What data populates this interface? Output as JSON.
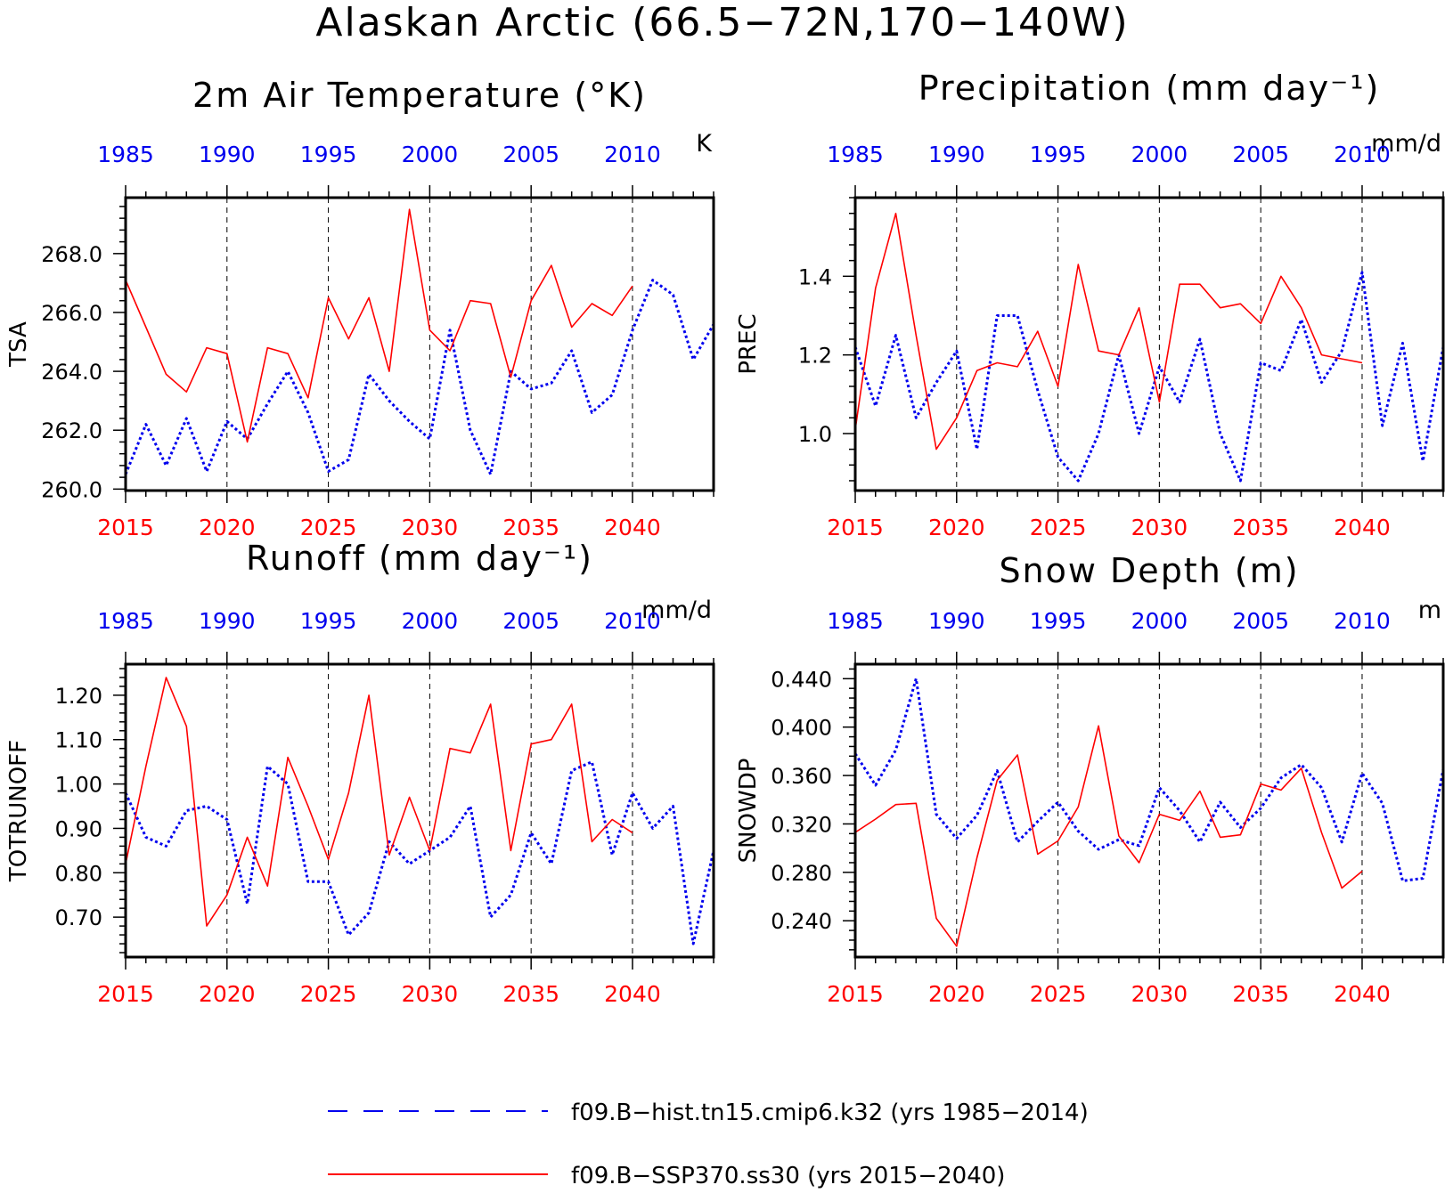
{
  "figure": {
    "title": "Alaskan Arctic (66.5−72N,170−140W)"
  },
  "colors": {
    "hist": "#0000ee",
    "ssp": "#ff0000",
    "axis": "#000000",
    "grid": "#000000"
  },
  "legend": {
    "hist_label": "f09.B−hist.tn15.cmip6.k32 (yrs 1985−2014)",
    "ssp_label": "f09.B−SSP370.ss30 (yrs 2015−2040)"
  },
  "chart_data": [
    {
      "type": "line",
      "title": "2m Air Temperature (°K)",
      "ylabel": "TSA",
      "units": "K",
      "xlim_bottom": [
        2015,
        2044
      ],
      "xlim_top": [
        1985,
        2014
      ],
      "ylim": [
        259.95,
        269.9
      ],
      "major_ticks": [
        260.0,
        262.0,
        264.0,
        266.0,
        268.0
      ],
      "tick_labels": [
        "260.0",
        "262.0",
        "264.0",
        "266.0",
        "268.0"
      ],
      "minor_step": 0.4,
      "bottom_ticks": [
        "2015",
        "2020",
        "2025",
        "2030",
        "2035",
        "2040"
      ],
      "top_ticks": [
        "1985",
        "1990",
        "1995",
        "2000",
        "2005",
        "2010"
      ],
      "grid": "dashed vertical lines every 5 years",
      "series": [
        {
          "name": "f09.B−hist.tn15.cmip6.k32 (yrs 1985−2014)",
          "style": "dotted",
          "x": [
            1985,
            1986,
            1987,
            1988,
            1989,
            1990,
            1991,
            1992,
            1993,
            1994,
            1995,
            1996,
            1997,
            1998,
            1999,
            2000,
            2001,
            2002,
            2003,
            2004,
            2005,
            2006,
            2007,
            2008,
            2009,
            2010,
            2011,
            2012,
            2013,
            2014
          ],
          "values": [
            260.5,
            262.2,
            260.8,
            262.4,
            260.6,
            262.3,
            261.7,
            262.9,
            264.0,
            262.6,
            260.6,
            261.0,
            263.9,
            263.0,
            262.3,
            261.7,
            265.4,
            262.0,
            260.5,
            264.0,
            263.4,
            263.6,
            264.7,
            262.6,
            263.2,
            265.4,
            267.1,
            266.6,
            264.4,
            265.6
          ]
        },
        {
          "name": "f09.B−SSP370.ss30 (yrs 2015−2040)",
          "style": "solid",
          "x": [
            2015,
            2016,
            2017,
            2018,
            2019,
            2020,
            2021,
            2022,
            2023,
            2024,
            2025,
            2026,
            2027,
            2028,
            2029,
            2030,
            2031,
            2032,
            2033,
            2034,
            2035,
            2036,
            2037,
            2038,
            2039,
            2040
          ],
          "values": [
            267.1,
            265.5,
            263.9,
            263.3,
            264.8,
            264.6,
            261.6,
            264.8,
            264.6,
            263.1,
            266.5,
            265.1,
            266.5,
            264.0,
            269.5,
            265.4,
            264.7,
            266.4,
            266.3,
            263.8,
            266.4,
            267.6,
            265.5,
            266.3,
            265.9,
            266.9
          ]
        }
      ]
    },
    {
      "type": "line",
      "title": "Precipitation (mm day⁻¹)",
      "ylabel": "PREC",
      "units": "mm/d",
      "xlim_bottom": [
        2015,
        2044
      ],
      "xlim_top": [
        1985,
        2014
      ],
      "ylim": [
        0.855,
        1.6
      ],
      "major_ticks": [
        1.0,
        1.2,
        1.4
      ],
      "tick_labels": [
        "1.0",
        "1.2",
        "1.4"
      ],
      "minor_step": 0.04,
      "bottom_ticks": [
        "2015",
        "2020",
        "2025",
        "2030",
        "2035",
        "2040"
      ],
      "top_ticks": [
        "1985",
        "1990",
        "1995",
        "2000",
        "2005",
        "2010"
      ],
      "grid": "dashed vertical lines every 5 years",
      "series": [
        {
          "name": "f09.B−hist.tn15.cmip6.k32 (yrs 1985−2014)",
          "style": "dotted",
          "x": [
            1985,
            1986,
            1987,
            1988,
            1989,
            1990,
            1991,
            1992,
            1993,
            1994,
            1995,
            1996,
            1997,
            1998,
            1999,
            2000,
            2001,
            2002,
            2003,
            2004,
            2005,
            2006,
            2007,
            2008,
            2009,
            2010,
            2011,
            2012,
            2013,
            2014
          ],
          "values": [
            1.22,
            1.07,
            1.25,
            1.04,
            1.13,
            1.21,
            0.96,
            1.3,
            1.3,
            1.11,
            0.94,
            0.88,
            1.0,
            1.2,
            1.0,
            1.17,
            1.08,
            1.24,
            1.0,
            0.88,
            1.18,
            1.16,
            1.29,
            1.13,
            1.21,
            1.41,
            1.02,
            1.23,
            0.93,
            1.22
          ]
        },
        {
          "name": "f09.B−SSP370.ss30 (yrs 2015−2040)",
          "style": "solid",
          "x": [
            2015,
            2016,
            2017,
            2018,
            2019,
            2020,
            2021,
            2022,
            2023,
            2024,
            2025,
            2026,
            2027,
            2028,
            2029,
            2030,
            2031,
            2032,
            2033,
            2034,
            2035,
            2036,
            2037,
            2038,
            2039,
            2040
          ],
          "values": [
            1.01,
            1.37,
            1.56,
            1.25,
            0.96,
            1.04,
            1.16,
            1.18,
            1.17,
            1.26,
            1.12,
            1.43,
            1.21,
            1.2,
            1.32,
            1.08,
            1.38,
            1.38,
            1.32,
            1.33,
            1.28,
            1.4,
            1.32,
            1.2,
            1.19,
            1.18
          ]
        }
      ]
    },
    {
      "type": "line",
      "title": "Runoff (mm day⁻¹)",
      "ylabel": "TOTRUNOFF",
      "units": "mm/d",
      "xlim_bottom": [
        2015,
        2044
      ],
      "xlim_top": [
        1985,
        2014
      ],
      "ylim": [
        0.61,
        1.27
      ],
      "major_ticks": [
        0.7,
        0.8,
        0.9,
        1.0,
        1.1,
        1.2
      ],
      "tick_labels": [
        "0.70",
        "0.80",
        "0.90",
        "1.00",
        "1.10",
        "1.20"
      ],
      "minor_step": 0.02,
      "bottom_ticks": [
        "2015",
        "2020",
        "2025",
        "2030",
        "2035",
        "2040"
      ],
      "top_ticks": [
        "1985",
        "1990",
        "1995",
        "2000",
        "2005",
        "2010"
      ],
      "grid": "dashed vertical lines every 5 years",
      "series": [
        {
          "name": "f09.B−hist.tn15.cmip6.k32 (yrs 1985−2014)",
          "style": "dotted",
          "x": [
            1985,
            1986,
            1987,
            1988,
            1989,
            1990,
            1991,
            1992,
            1993,
            1994,
            1995,
            1996,
            1997,
            1998,
            1999,
            2000,
            2001,
            2002,
            2003,
            2004,
            2005,
            2006,
            2007,
            2008,
            2009,
            2010,
            2011,
            2012,
            2013,
            2014
          ],
          "values": [
            0.98,
            0.88,
            0.86,
            0.94,
            0.95,
            0.92,
            0.73,
            1.04,
            1.0,
            0.78,
            0.78,
            0.66,
            0.71,
            0.87,
            0.82,
            0.85,
            0.88,
            0.95,
            0.7,
            0.75,
            0.89,
            0.82,
            1.03,
            1.05,
            0.84,
            0.98,
            0.9,
            0.95,
            0.64,
            0.85
          ]
        },
        {
          "name": "f09.B−SSP370.ss30 (yrs 2015−2040)",
          "style": "solid",
          "x": [
            2015,
            2016,
            2017,
            2018,
            2019,
            2020,
            2021,
            2022,
            2023,
            2024,
            2025,
            2026,
            2027,
            2028,
            2029,
            2030,
            2031,
            2032,
            2033,
            2034,
            2035,
            2036,
            2037,
            2038,
            2039,
            2040
          ],
          "values": [
            0.82,
            1.04,
            1.24,
            1.13,
            0.68,
            0.75,
            0.88,
            0.77,
            1.06,
            0.95,
            0.83,
            0.98,
            1.2,
            0.84,
            0.97,
            0.85,
            1.08,
            1.07,
            1.18,
            0.85,
            1.09,
            1.1,
            1.18,
            0.87,
            0.92,
            0.89
          ]
        }
      ]
    },
    {
      "type": "line",
      "title": "Snow Depth (m)",
      "ylabel": "SNOWDP",
      "units": "m",
      "xlim_bottom": [
        2015,
        2044
      ],
      "xlim_top": [
        1985,
        2014
      ],
      "ylim": [
        0.21,
        0.452
      ],
      "major_ticks": [
        0.24,
        0.28,
        0.32,
        0.36,
        0.4,
        0.44
      ],
      "tick_labels": [
        "0.240",
        "0.280",
        "0.320",
        "0.360",
        "0.400",
        "0.440"
      ],
      "minor_step": 0.008,
      "bottom_ticks": [
        "2015",
        "2020",
        "2025",
        "2030",
        "2035",
        "2040"
      ],
      "top_ticks": [
        "1985",
        "1990",
        "1995",
        "2000",
        "2005",
        "2010"
      ],
      "grid": "dashed vertical lines every 5 years",
      "series": [
        {
          "name": "f09.B−hist.tn15.cmip6.k32 (yrs 1985−2014)",
          "style": "dotted",
          "x": [
            1985,
            1986,
            1987,
            1988,
            1989,
            1990,
            1991,
            1992,
            1993,
            1994,
            1995,
            1996,
            1997,
            1998,
            1999,
            2000,
            2001,
            2002,
            2003,
            2004,
            2005,
            2006,
            2007,
            2008,
            2009,
            2010,
            2011,
            2012,
            2013,
            2014
          ],
          "values": [
            0.378,
            0.352,
            0.381,
            0.44,
            0.328,
            0.308,
            0.327,
            0.364,
            0.305,
            0.322,
            0.338,
            0.314,
            0.299,
            0.307,
            0.302,
            0.35,
            0.331,
            0.305,
            0.338,
            0.317,
            0.333,
            0.358,
            0.369,
            0.35,
            0.305,
            0.362,
            0.337,
            0.273,
            0.275,
            0.365
          ]
        },
        {
          "name": "f09.B−SSP370.ss30 (yrs 2015−2040)",
          "style": "solid",
          "x": [
            2015,
            2016,
            2017,
            2018,
            2019,
            2020,
            2021,
            2022,
            2023,
            2024,
            2025,
            2026,
            2027,
            2028,
            2029,
            2030,
            2031,
            2032,
            2033,
            2034,
            2035,
            2036,
            2037,
            2038,
            2039,
            2040
          ],
          "values": [
            0.313,
            0.324,
            0.336,
            0.337,
            0.242,
            0.219,
            0.292,
            0.356,
            0.377,
            0.295,
            0.306,
            0.334,
            0.401,
            0.31,
            0.288,
            0.328,
            0.323,
            0.347,
            0.309,
            0.311,
            0.353,
            0.348,
            0.366,
            0.313,
            0.267,
            0.281
          ]
        }
      ]
    }
  ]
}
